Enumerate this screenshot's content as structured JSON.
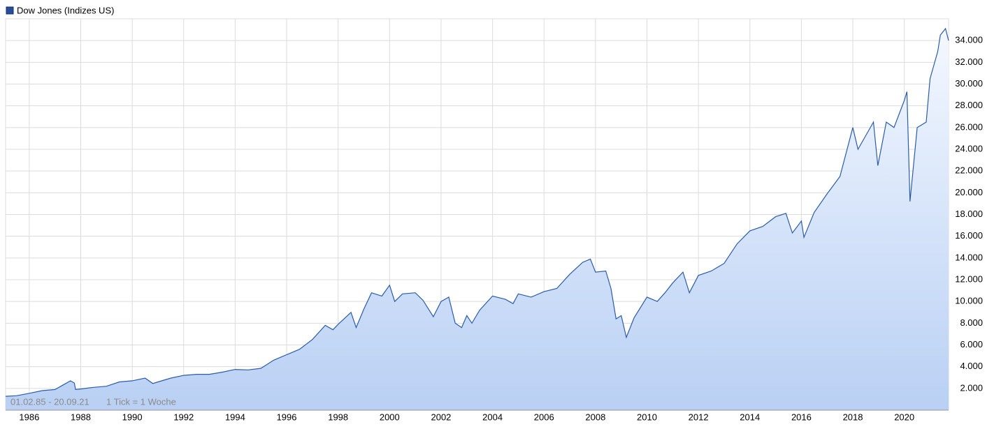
{
  "chart_data": {
    "type": "area",
    "legend": "Dow Jones (Indizes US)",
    "footnote": [
      "01.02.85 - 20.09.21",
      "1 Tick = 1 Woche"
    ],
    "color": "#2a5caa",
    "grid": true,
    "x": [
      1985.08,
      1985.5,
      1986.0,
      1986.5,
      1987.0,
      1987.3,
      1987.6,
      1987.75,
      1987.8,
      1988.0,
      1988.5,
      1989.0,
      1989.5,
      1990.0,
      1990.5,
      1990.8,
      1991.0,
      1991.5,
      1992.0,
      1992.5,
      1993.0,
      1993.5,
      1994.0,
      1994.5,
      1995.0,
      1995.5,
      1996.0,
      1996.5,
      1997.0,
      1997.5,
      1997.8,
      1998.0,
      1998.5,
      1998.7,
      1999.0,
      1999.3,
      1999.7,
      2000.0,
      2000.2,
      2000.5,
      2001.0,
      2001.3,
      2001.7,
      2002.0,
      2002.3,
      2002.55,
      2002.8,
      2003.0,
      2003.2,
      2003.5,
      2004.0,
      2004.5,
      2004.8,
      2005.0,
      2005.5,
      2006.0,
      2006.5,
      2007.0,
      2007.5,
      2007.8,
      2008.0,
      2008.4,
      2008.6,
      2008.8,
      2009.0,
      2009.2,
      2009.5,
      2010.0,
      2010.4,
      2010.7,
      2011.0,
      2011.4,
      2011.65,
      2012.0,
      2012.5,
      2013.0,
      2013.5,
      2014.0,
      2014.5,
      2015.0,
      2015.4,
      2015.65,
      2016.0,
      2016.1,
      2016.5,
      2017.0,
      2017.5,
      2018.0,
      2018.2,
      2018.8,
      2018.97,
      2019.3,
      2019.6,
      2020.0,
      2020.1,
      2020.22,
      2020.5,
      2020.85,
      2021.0,
      2021.3,
      2021.4,
      2021.6,
      2021.72
    ],
    "values": [
      1280,
      1330,
      1550,
      1800,
      1900,
      2300,
      2700,
      2500,
      1900,
      1950,
      2100,
      2200,
      2600,
      2700,
      2950,
      2450,
      2600,
      2950,
      3200,
      3300,
      3300,
      3500,
      3750,
      3700,
      3850,
      4600,
      5100,
      5600,
      6500,
      7800,
      7400,
      7900,
      9000,
      7600,
      9300,
      10800,
      10500,
      11500,
      10000,
      10700,
      10800,
      10100,
      8600,
      10000,
      10400,
      8000,
      7600,
      8700,
      8000,
      9200,
      10500,
      10200,
      9800,
      10700,
      10400,
      10900,
      11200,
      12500,
      13600,
      13900,
      12700,
      12800,
      11200,
      8400,
      8700,
      6700,
      8500,
      10400,
      10000,
      10800,
      11700,
      12700,
      10800,
      12400,
      12800,
      13500,
      15300,
      16500,
      16900,
      17800,
      18100,
      16300,
      17400,
      15900,
      18200,
      19900,
      21500,
      26000,
      24000,
      26500,
      22500,
      26500,
      26000,
      28500,
      29300,
      19200,
      26000,
      26500,
      30500,
      33000,
      34500,
      35100,
      34000
    ],
    "xlim": [
      1985.08,
      2021.72
    ],
    "xticks": [
      1986,
      1988,
      1990,
      1992,
      1994,
      1996,
      1998,
      2000,
      2002,
      2004,
      2006,
      2008,
      2010,
      2012,
      2014,
      2016,
      2018,
      2020
    ],
    "ylim": [
      0,
      36000
    ],
    "yticks": [
      {
        "value": 2000,
        "label": "2.000"
      },
      {
        "value": 4000,
        "label": "4.000"
      },
      {
        "value": 6000,
        "label": "6.000"
      },
      {
        "value": 8000,
        "label": "8.000"
      },
      {
        "value": 10000,
        "label": "10.000"
      },
      {
        "value": 12000,
        "label": "12.000"
      },
      {
        "value": 14000,
        "label": "14.000"
      },
      {
        "value": 16000,
        "label": "16.000"
      },
      {
        "value": 18000,
        "label": "18.000"
      },
      {
        "value": 20000,
        "label": "20.000"
      },
      {
        "value": 22000,
        "label": "22.000"
      },
      {
        "value": 24000,
        "label": "24.000"
      },
      {
        "value": 26000,
        "label": "26.000"
      },
      {
        "value": 28000,
        "label": "28.000"
      },
      {
        "value": 30000,
        "label": "30.000"
      },
      {
        "value": 32000,
        "label": "32.000"
      },
      {
        "value": 34000,
        "label": "34.000"
      }
    ]
  }
}
